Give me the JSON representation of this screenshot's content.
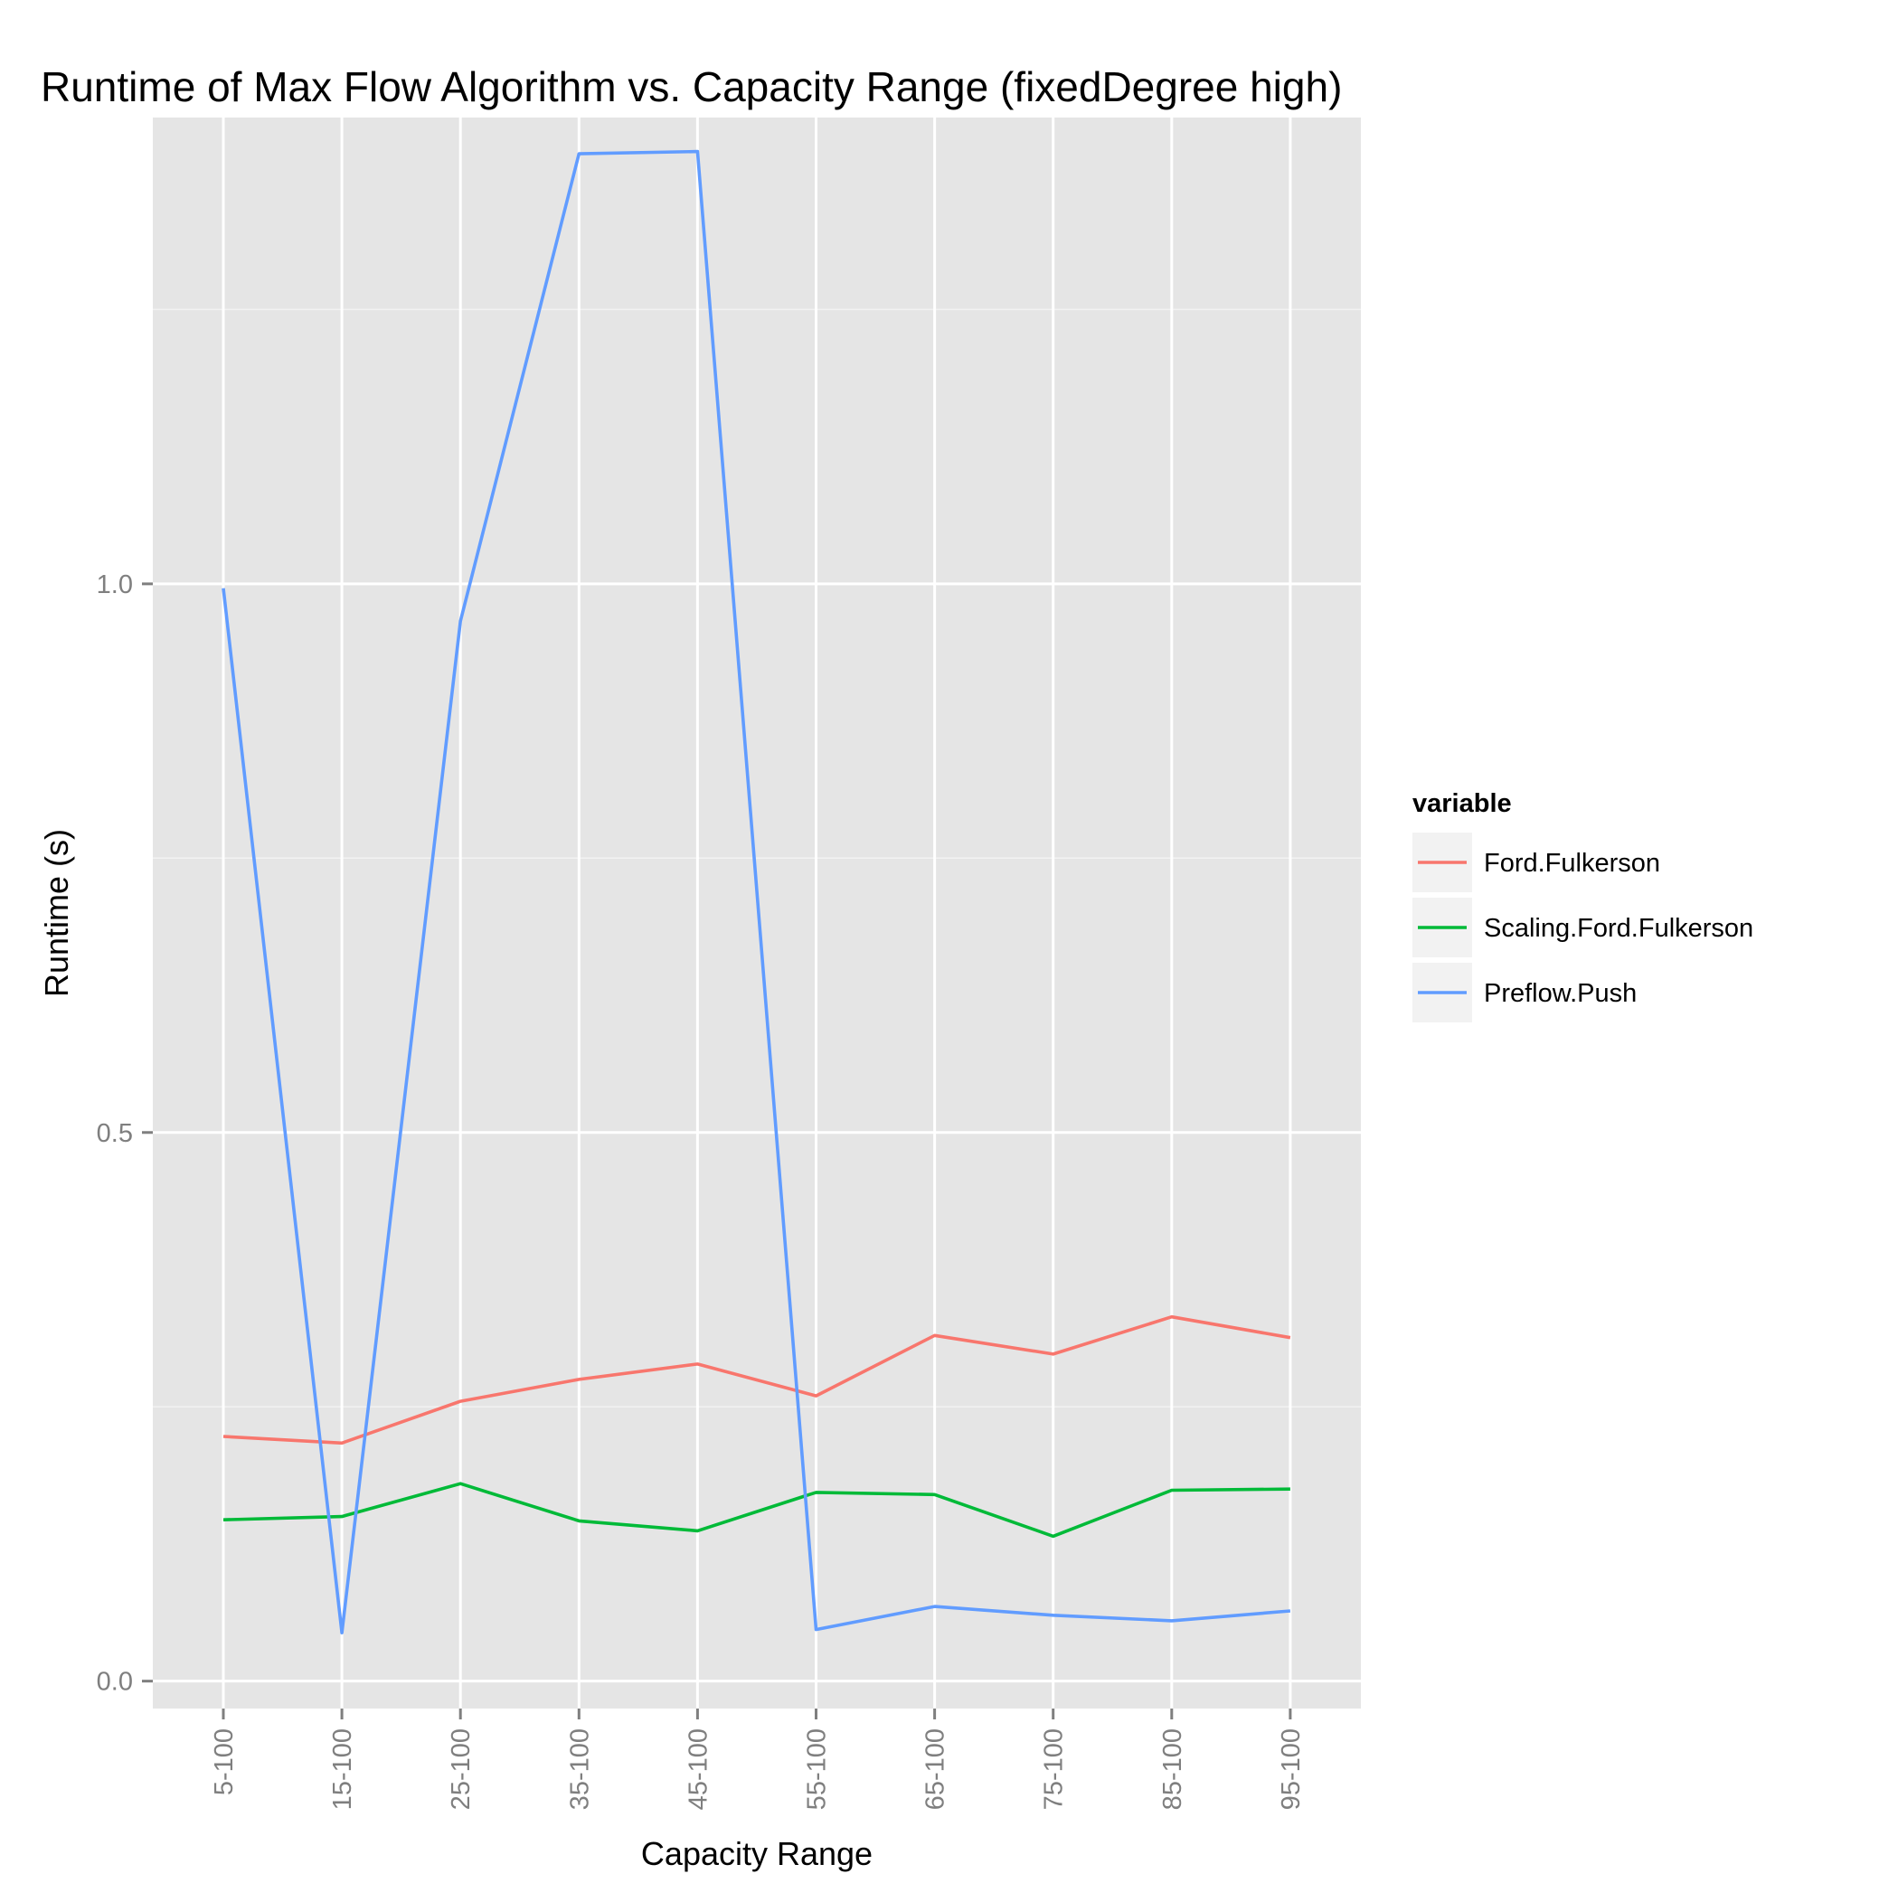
{
  "chart_data": {
    "type": "line",
    "title": "Runtime of Max Flow Algorithm vs. Capacity Range (fixedDegree high)",
    "xlabel": "Capacity Range",
    "ylabel": "Runtime (s)",
    "categories": [
      "5-100",
      "15-100",
      "25-100",
      "35-100",
      "45-100",
      "55-100",
      "65-100",
      "75-100",
      "85-100",
      "95-100"
    ],
    "ylim": [
      -0.025,
      1.425
    ],
    "yticks": [
      0.0,
      0.5,
      1.0
    ],
    "ytick_labels": [
      "0.0",
      "0.5",
      "1.0"
    ],
    "grid": true,
    "legend": {
      "title": "variable",
      "position": "right"
    },
    "series": [
      {
        "name": "Ford.Fulkerson",
        "color": "#F8766D",
        "values": [
          0.223,
          0.217,
          0.255,
          0.275,
          0.289,
          0.26,
          0.315,
          0.298,
          0.332,
          0.313
        ]
      },
      {
        "name": "Scaling.Ford.Fulkerson",
        "color": "#00BA38",
        "values": [
          0.147,
          0.15,
          0.18,
          0.146,
          0.137,
          0.172,
          0.17,
          0.132,
          0.174,
          0.175
        ]
      },
      {
        "name": "Preflow.Push",
        "color": "#619CFF",
        "values": [
          0.996,
          0.044,
          0.966,
          1.392,
          1.394,
          0.047,
          0.068,
          0.06,
          0.055,
          0.064
        ]
      }
    ]
  }
}
